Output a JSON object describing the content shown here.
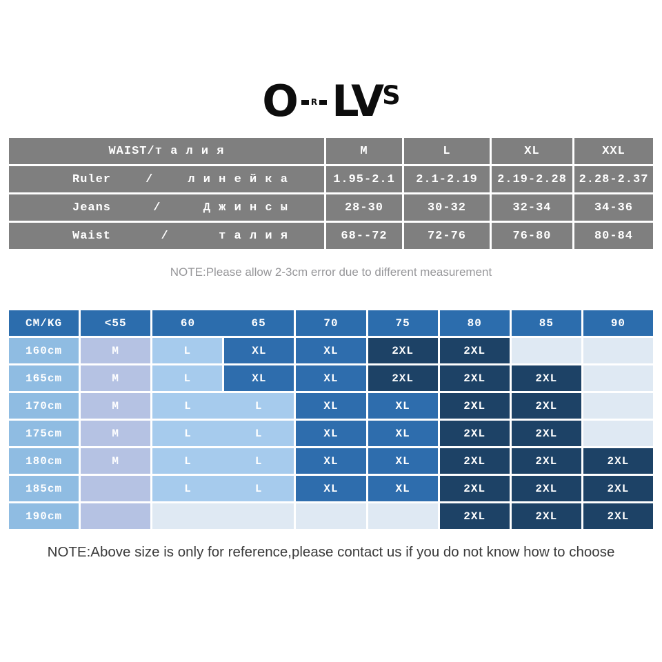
{
  "logo": {
    "part1": "O",
    "part2": "R",
    "part3": "LV",
    "part4": "S"
  },
  "notes": {
    "top": "NOTE:Please allow 2-3cm error due to different measurement",
    "bottom": "NOTE:Above size is only for reference,please contact us if you do not know how to choose"
  },
  "chart_data": [
    {
      "type": "table",
      "title": "WAIST/т а л и я",
      "columns": [
        "M",
        "L",
        "XL",
        "XXL"
      ],
      "rows": [
        {
          "label_en": "Ruler",
          "label_sep": "/",
          "label_ru": "л и н е й к а",
          "values": [
            "1.95-2.1",
            "2.1-2.19",
            "2.19-2.28",
            "2.28-2.37"
          ]
        },
        {
          "label_en": "Jeans",
          "label_sep": "/",
          "label_ru": "Д ж и н с ы",
          "values": [
            "28-30",
            "30-32",
            "32-34",
            "34-36"
          ]
        },
        {
          "label_en": "Waist",
          "label_sep": "/",
          "label_ru": "т а л и я",
          "values": [
            "68--72",
            "72-76",
            "76-80",
            "80-84"
          ]
        }
      ]
    },
    {
      "type": "table",
      "header": [
        {
          "text": "CM/KG"
        },
        {
          "text": "<55"
        },
        {
          "texts": [
            "60",
            "65"
          ],
          "span": 2
        },
        {
          "text": "70"
        },
        {
          "text": "75"
        },
        {
          "text": "80"
        },
        {
          "text": "85"
        },
        {
          "text": "90"
        }
      ],
      "rows": [
        {
          "cells": [
            {
              "text": "160cm",
              "tone": "rowlabel"
            },
            {
              "text": "M",
              "tone": "m"
            },
            {
              "text": "L",
              "tone": "l"
            },
            {
              "text": "XL",
              "tone": "xl"
            },
            {
              "text": "XL",
              "tone": "xl"
            },
            {
              "text": "2XL",
              "tone": "dark"
            },
            {
              "text": "2XL",
              "tone": "dark"
            },
            {
              "text": "",
              "tone": "empty"
            },
            {
              "text": "",
              "tone": "empty"
            }
          ]
        },
        {
          "cells": [
            {
              "text": "165cm",
              "tone": "rowlabel"
            },
            {
              "text": "M",
              "tone": "m"
            },
            {
              "text": "L",
              "tone": "l"
            },
            {
              "text": "XL",
              "tone": "xl"
            },
            {
              "text": "XL",
              "tone": "xl"
            },
            {
              "text": "2XL",
              "tone": "dark"
            },
            {
              "text": "2XL",
              "tone": "dark"
            },
            {
              "text": "2XL",
              "tone": "dark"
            },
            {
              "text": "",
              "tone": "empty"
            }
          ]
        },
        {
          "cells": [
            {
              "text": "170cm",
              "tone": "rowlabel"
            },
            {
              "text": "M",
              "tone": "m"
            },
            {
              "texts": [
                "L",
                "L"
              ],
              "span": 2,
              "tone": "l"
            },
            {
              "text": "XL",
              "tone": "xl"
            },
            {
              "text": "XL",
              "tone": "xl"
            },
            {
              "text": "2XL",
              "tone": "dark"
            },
            {
              "text": "2XL",
              "tone": "dark"
            },
            {
              "text": "",
              "tone": "empty"
            }
          ]
        },
        {
          "cells": [
            {
              "text": "175cm",
              "tone": "rowlabel"
            },
            {
              "text": "M",
              "tone": "m"
            },
            {
              "texts": [
                "L",
                "L"
              ],
              "span": 2,
              "tone": "l"
            },
            {
              "text": "XL",
              "tone": "xl"
            },
            {
              "text": "XL",
              "tone": "xl"
            },
            {
              "text": "2XL",
              "tone": "dark"
            },
            {
              "text": "2XL",
              "tone": "dark"
            },
            {
              "text": "",
              "tone": "empty"
            }
          ]
        },
        {
          "cells": [
            {
              "text": "180cm",
              "tone": "rowlabel"
            },
            {
              "text": "M",
              "tone": "m"
            },
            {
              "texts": [
                "L",
                "L"
              ],
              "span": 2,
              "tone": "l"
            },
            {
              "text": "XL",
              "tone": "xl"
            },
            {
              "text": "XL",
              "tone": "xl"
            },
            {
              "text": "2XL",
              "tone": "dark"
            },
            {
              "text": "2XL",
              "tone": "dark"
            },
            {
              "text": "2XL",
              "tone": "dark"
            }
          ]
        },
        {
          "cells": [
            {
              "text": "185cm",
              "tone": "rowlabel"
            },
            {
              "text": "",
              "tone": "m"
            },
            {
              "texts": [
                "L",
                "L"
              ],
              "span": 2,
              "tone": "l"
            },
            {
              "text": "XL",
              "tone": "xl"
            },
            {
              "text": "XL",
              "tone": "xl"
            },
            {
              "text": "2XL",
              "tone": "dark"
            },
            {
              "text": "2XL",
              "tone": "dark"
            },
            {
              "text": "2XL",
              "tone": "dark"
            }
          ]
        },
        {
          "cells": [
            {
              "text": "190cm",
              "tone": "rowlabel"
            },
            {
              "text": "",
              "tone": "m"
            },
            {
              "text": "",
              "span": 2,
              "tone": "empty"
            },
            {
              "text": "",
              "tone": "empty"
            },
            {
              "text": "",
              "tone": "empty"
            },
            {
              "text": "2XL",
              "tone": "dark"
            },
            {
              "text": "2XL",
              "tone": "dark"
            },
            {
              "text": "2XL",
              "tone": "dark"
            }
          ]
        }
      ]
    }
  ],
  "colors": {
    "table_gray": "#7f7f7f",
    "header_blue": "#2c6dad",
    "row_label_blue": "#8fbce2",
    "m_lavender": "#b5c2e3",
    "l_sky": "#a6cbed",
    "xl_blue": "#2e6dad",
    "dark_navy": "#1d4266",
    "empty_light": "#dfe9f3",
    "note_top_gray": "#97979a",
    "note_bottom_dark": "#3a3a3a",
    "logo_black": "#0d0d0d"
  }
}
